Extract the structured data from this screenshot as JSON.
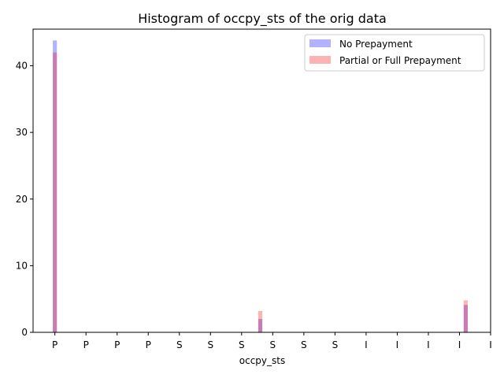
{
  "chart_data": {
    "type": "bar",
    "title": "Histogram of occpy_sts of the orig data",
    "xlabel": "occpy_sts",
    "ylabel": "",
    "x_tick_labels": [
      "P",
      "P",
      "P",
      "P",
      "S",
      "S",
      "S",
      "S",
      "S",
      "S",
      "I",
      "I",
      "I",
      "I",
      "I"
    ],
    "ylim": [
      0,
      45.5
    ],
    "y_ticks": [
      0,
      10,
      20,
      30,
      40
    ],
    "x_range": [
      -0.7,
      14
    ],
    "legend_position": "top-right",
    "grid": false,
    "bars": [
      {
        "x": 0.0,
        "values": [
          43.8,
          42
        ]
      },
      {
        "x": 6.6,
        "values": [
          2.0,
          3.2
        ]
      },
      {
        "x": 13.2,
        "values": [
          4.1,
          4.8
        ]
      }
    ],
    "bar_width": 0.13,
    "series": [
      {
        "name": "No Prepayment",
        "color": "#0000ff",
        "opacity": 0.3
      },
      {
        "name": "Partial or Full Prepayment",
        "color": "#ff0000",
        "opacity": 0.3
      }
    ]
  }
}
